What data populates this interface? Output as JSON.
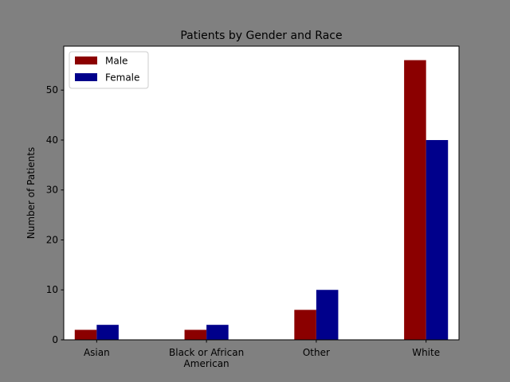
{
  "chart_data": {
    "type": "bar",
    "title": "Patients by Gender and Race",
    "xlabel": "",
    "ylabel": "Number of Patients",
    "categories": [
      [
        "Asian"
      ],
      [
        "Black or African",
        "American"
      ],
      [
        "Other"
      ],
      [
        "White"
      ]
    ],
    "series": [
      {
        "name": "Male",
        "color": "#8b0000",
        "values": [
          2,
          2,
          6,
          56
        ]
      },
      {
        "name": "Female",
        "color": "#00008b",
        "values": [
          3,
          3,
          10,
          40
        ]
      }
    ],
    "ylim": [
      0,
      58.8
    ],
    "yticks": [
      0,
      10,
      20,
      30,
      40,
      50
    ],
    "legend": {
      "position": "top-left"
    },
    "grid": false,
    "figure_background": "#808080",
    "axes_background": "#ffffff"
  }
}
